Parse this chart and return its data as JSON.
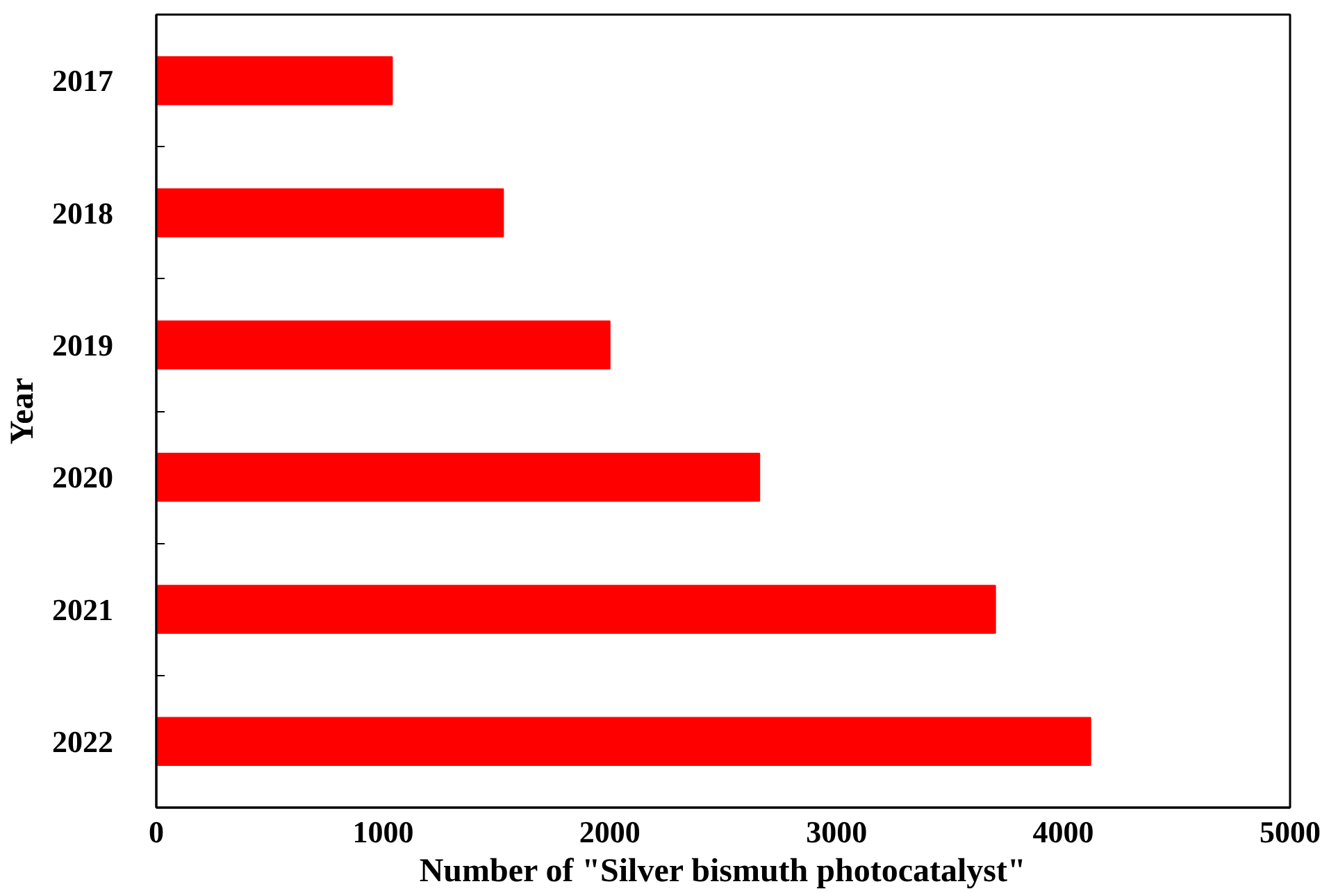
{
  "chart_data": {
    "type": "bar",
    "orientation": "horizontal",
    "xlabel": "Number of \"Silver bismuth photocatalyst\"",
    "ylabel": "Year",
    "categories": [
      "2017",
      "2018",
      "2019",
      "2020",
      "2021",
      "2022"
    ],
    "values": [
      1040,
      1530,
      2000,
      2660,
      3700,
      4120
    ],
    "color": "#ff0000",
    "xlim": [
      0,
      5000
    ],
    "xticks": [
      0,
      1000,
      2000,
      3000,
      4000,
      5000
    ],
    "grid": false
  }
}
